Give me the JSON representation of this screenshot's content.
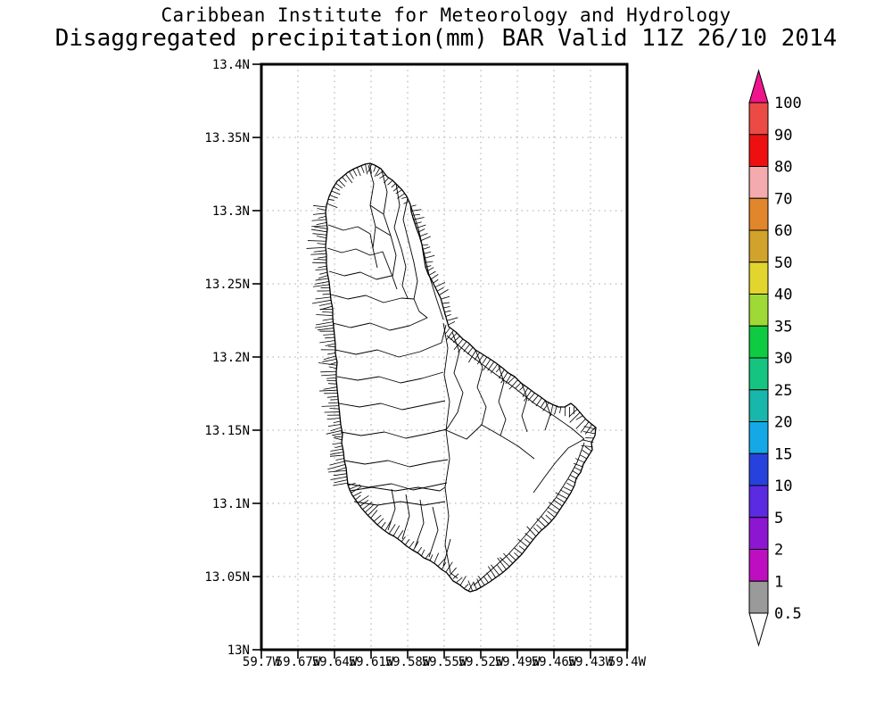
{
  "page": {
    "background": "#ffffff"
  },
  "title": {
    "line1": "Caribbean Institute for Meteorology and Hydrology",
    "line2": "Disaggregated precipitation(mm) BAR Valid 11Z 26/10 2014"
  },
  "map": {
    "region": "Barbados watershed outline map",
    "lon_min": 59.4,
    "lon_max": 59.7,
    "lat_min": 13.0,
    "lat_max": 13.4,
    "x_ticks": [
      {
        "value": 59.7,
        "label": "59.7W"
      },
      {
        "value": 59.67,
        "label": "59.67W"
      },
      {
        "value": 59.64,
        "label": "59.64W"
      },
      {
        "value": 59.61,
        "label": "59.61W"
      },
      {
        "value": 59.58,
        "label": "59.58W"
      },
      {
        "value": 59.55,
        "label": "59.55W"
      },
      {
        "value": 59.52,
        "label": "59.52W"
      },
      {
        "value": 59.49,
        "label": "59.49W"
      },
      {
        "value": 59.46,
        "label": "59.46W"
      },
      {
        "value": 59.43,
        "label": "59.43W"
      },
      {
        "value": 59.4,
        "label": "59.4W"
      }
    ],
    "y_ticks": [
      {
        "value": 13.4,
        "label": "13.4N"
      },
      {
        "value": 13.35,
        "label": "13.35N"
      },
      {
        "value": 13.3,
        "label": "13.3N"
      },
      {
        "value": 13.25,
        "label": "13.25N"
      },
      {
        "value": 13.2,
        "label": "13.2N"
      },
      {
        "value": 13.15,
        "label": "13.15N"
      },
      {
        "value": 13.1,
        "label": "13.1N"
      },
      {
        "value": 13.05,
        "label": "13.05N"
      },
      {
        "value": 13.0,
        "label": "13N"
      }
    ],
    "grid_color": "#aaaaaa",
    "frame_color": "#000000",
    "coastline_color": "#000000"
  },
  "colorbar": {
    "unit": "mm",
    "tick_labels": [
      "100",
      "90",
      "80",
      "70",
      "60",
      "50",
      "40",
      "35",
      "30",
      "25",
      "20",
      "15",
      "10",
      "5",
      "2",
      "1",
      "0.5"
    ],
    "segment_colors_top_to_bottom": [
      "#eb4a45",
      "#ee1010",
      "#f4abad",
      "#e1862a",
      "#d2a32a",
      "#e2d52e",
      "#9fd936",
      "#0ecb41",
      "#15c57f",
      "#18b7ab",
      "#14a9e6",
      "#2742dc",
      "#5a2be1",
      "#8d17d0",
      "#bd0fbf",
      "#9a9a9a"
    ],
    "above_max_color": "#f0148c",
    "below_min_color": "#ffffff",
    "outline_color": "#000000"
  }
}
